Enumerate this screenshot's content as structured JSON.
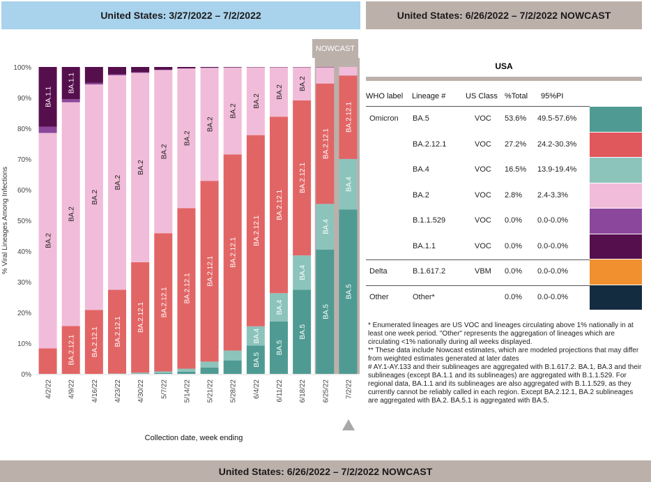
{
  "header_left": "United States: 3/27/2022 – 7/2/2022",
  "header_right": "United States: 6/26/2022 – 7/2/2022 NOWCAST",
  "footer": "United States: 6/26/2022 – 7/2/2022 NOWCAST",
  "nowcast_label": "NOWCAST",
  "chart_data": {
    "type": "bar",
    "stacked": true,
    "ylabel": "% Viral Lineages Among Infections",
    "xlabel": "Collection date, week ending",
    "yticks": [
      "0%",
      "10%",
      "20%",
      "30%",
      "40%",
      "50%",
      "60%",
      "70%",
      "80%",
      "90%",
      "100%"
    ],
    "ylim": [
      0,
      100
    ],
    "categories": [
      "4/2/22",
      "4/9/22",
      "4/16/22",
      "4/23/22",
      "4/30/22",
      "5/7/22",
      "5/14/22",
      "5/21/22",
      "5/28/22",
      "6/4/22",
      "6/11/22",
      "6/18/22",
      "6/25/22",
      "7/2/22"
    ],
    "nowcast_categories": [
      "6/25/22",
      "7/2/22"
    ],
    "series": [
      {
        "name": "BA.5",
        "color": "#4f9b93",
        "values": [
          0,
          0,
          0,
          0,
          0.1,
          0.3,
          0.7,
          2.1,
          4.4,
          9.2,
          17.1,
          27.4,
          40.5,
          53.6
        ]
      },
      {
        "name": "BA.4",
        "color": "#8cc4bc",
        "values": [
          0,
          0,
          0,
          0.1,
          0.3,
          0.5,
          1,
          1.9,
          3.2,
          6.3,
          9.2,
          11.2,
          14.9,
          16.5
        ]
      },
      {
        "name": "BA.2.12.1",
        "color": "#e26565",
        "values": [
          8.3,
          15.6,
          20.8,
          27.3,
          36,
          45,
          52.3,
          58.9,
          63.9,
          62.3,
          57.5,
          50.5,
          39.2,
          27.2
        ]
      },
      {
        "name": "BA.2",
        "color": "#f1bcd9",
        "values": [
          70.2,
          72.9,
          73.5,
          69.9,
          61.7,
          53.2,
          45.5,
          36.8,
          28.3,
          22.1,
          16.1,
          10.8,
          5.3,
          2.8
        ]
      },
      {
        "name": "B.1.1.529",
        "color": "#8b479b",
        "values": [
          2,
          1,
          0.5,
          0.3,
          0.2,
          0.1,
          0.05,
          0.05,
          0.05,
          0,
          0,
          0,
          0,
          0
        ]
      },
      {
        "name": "BA.1.1",
        "color": "#560f4d",
        "values": [
          19.5,
          10.5,
          5.2,
          2.4,
          1.7,
          0.9,
          0.45,
          0.25,
          0.15,
          0.1,
          0.1,
          0.1,
          0.1,
          0
        ]
      }
    ],
    "bar_labels": [
      {
        "series": "BA.2.12.1",
        "from": 1,
        "to": 13
      },
      {
        "series": "BA.2",
        "from": 0,
        "to": 11
      },
      {
        "series": "BA.1.1",
        "from": 0,
        "to": 1
      },
      {
        "series": "BA.4",
        "from": 9,
        "to": 13
      },
      {
        "series": "BA.5",
        "from": 9,
        "to": 13
      }
    ]
  },
  "table": {
    "title": "USA",
    "headers": [
      "WHO label",
      "Lineage #",
      "US Class",
      "%Total",
      "95%PI"
    ],
    "rows": [
      {
        "who": "Omicron",
        "lineage": "BA.5",
        "class": "VOC",
        "total": "53.6%",
        "pi": "49.5-57.6%",
        "color": "#4f9b93"
      },
      {
        "who": "",
        "lineage": "BA.2.12.1",
        "class": "VOC",
        "total": "27.2%",
        "pi": "24.2-30.3%",
        "color": "#e0575c"
      },
      {
        "who": "",
        "lineage": "BA.4",
        "class": "VOC",
        "total": "16.5%",
        "pi": "13.9-19.4%",
        "color": "#8cc4bc"
      },
      {
        "who": "",
        "lineage": "BA.2",
        "class": "VOC",
        "total": "2.8%",
        "pi": "2.4-3.3%",
        "color": "#f1bcd9"
      },
      {
        "who": "",
        "lineage": "B.1.1.529",
        "class": "VOC",
        "total": "0.0%",
        "pi": "0.0-0.0%",
        "color": "#8b479b"
      },
      {
        "who": "",
        "lineage": "BA.1.1",
        "class": "VOC",
        "total": "0.0%",
        "pi": "0.0-0.0%",
        "color": "#560f4d"
      },
      {
        "who": "Delta",
        "lineage": "B.1.617.2",
        "class": "VBM",
        "total": "0.0%",
        "pi": "0.0-0.0%",
        "color": "#f0902e"
      },
      {
        "who": "Other",
        "lineage": "Other*",
        "class": "",
        "total": "0.0%",
        "pi": "0.0-0.0%",
        "color": "#142c40"
      }
    ]
  },
  "notes": [
    "*      Enumerated lineages are US VOC and lineages circulating above 1% nationally in at least one week period. \"Other\" represents the aggregation of lineages which are circulating <1% nationally during all weeks displayed.",
    "**     These data include Nowcast estimates, which are modeled projections that may differ from weighted estimates generated at later dates",
    "#      AY.1-AY.133 and their sublineages are aggregated with B.1.617.2. BA.1, BA.3 and their sublineages (except BA.1.1 and its sublineages) are aggregated with B.1.1.529. For regional data, BA.1.1 and its sublineages are also aggregated with B.1.1.529, as they currently cannot be reliably called in each region. Except BA.2.12.1, BA.2 sublineages are aggregated with BA.2. BA.5.1 is aggregated with BA.5."
  ]
}
